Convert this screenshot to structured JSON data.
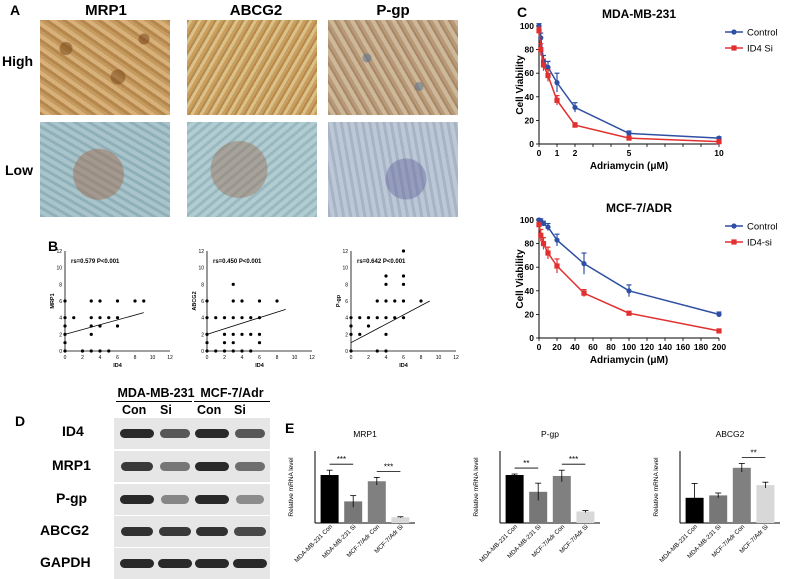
{
  "panels": {
    "A": "A",
    "B": "B",
    "C": "C",
    "D": "D",
    "E": "E"
  },
  "ihc": {
    "columns": [
      "MRP1",
      "ABCG2",
      "P-gp"
    ],
    "rows": [
      "High",
      "Low"
    ]
  },
  "chart_data": [
    {
      "type": "scatter",
      "panel": "B",
      "title": "",
      "xlabel": "ID4",
      "ylabel": "MRP1",
      "annotation": "rs=0.579 P<0.001",
      "xlim": [
        0,
        12
      ],
      "ylim": [
        0,
        12
      ],
      "xticks": [
        "0",
        "2",
        "4",
        "6",
        "8",
        "10",
        "12"
      ],
      "yticks": [
        "0",
        "2",
        "4",
        "6",
        "8",
        "10",
        "12"
      ],
      "points": [
        [
          0,
          0
        ],
        [
          0,
          1
        ],
        [
          0,
          2
        ],
        [
          0,
          3
        ],
        [
          0,
          4
        ],
        [
          0,
          6
        ],
        [
          1,
          4
        ],
        [
          2,
          0
        ],
        [
          3,
          0
        ],
        [
          3,
          2
        ],
        [
          3,
          3
        ],
        [
          3,
          4
        ],
        [
          3,
          6
        ],
        [
          4,
          0
        ],
        [
          4,
          3
        ],
        [
          4,
          4
        ],
        [
          4,
          6
        ],
        [
          5,
          0
        ],
        [
          5,
          4
        ],
        [
          6,
          3
        ],
        [
          6,
          4
        ],
        [
          6,
          6
        ],
        [
          8,
          6
        ],
        [
          9,
          6
        ]
      ],
      "fit": [
        [
          0,
          2
        ],
        [
          9,
          4.6
        ]
      ]
    },
    {
      "type": "scatter",
      "panel": "B",
      "title": "",
      "xlabel": "ID4",
      "ylabel": "ABCG2",
      "annotation": "rs=0.450 P<0.001",
      "xlim": [
        0,
        12
      ],
      "ylim": [
        0,
        12
      ],
      "xticks": [
        "0",
        "2",
        "4",
        "6",
        "8",
        "10",
        "12"
      ],
      "yticks": [
        "0",
        "2",
        "4",
        "6",
        "8",
        "10",
        "12"
      ],
      "points": [
        [
          0,
          0
        ],
        [
          0,
          1
        ],
        [
          0,
          2
        ],
        [
          0,
          4
        ],
        [
          0,
          6
        ],
        [
          1,
          0
        ],
        [
          1,
          4
        ],
        [
          2,
          0
        ],
        [
          2,
          1
        ],
        [
          2,
          2
        ],
        [
          2,
          4
        ],
        [
          3,
          0
        ],
        [
          3,
          1
        ],
        [
          3,
          2
        ],
        [
          3,
          4
        ],
        [
          3,
          6
        ],
        [
          3,
          8
        ],
        [
          4,
          0
        ],
        [
          4,
          2
        ],
        [
          4,
          4
        ],
        [
          4,
          6
        ],
        [
          5,
          0
        ],
        [
          5,
          2
        ],
        [
          5,
          4
        ],
        [
          6,
          1
        ],
        [
          6,
          2
        ],
        [
          6,
          4
        ],
        [
          6,
          6
        ],
        [
          8,
          6
        ]
      ],
      "fit": [
        [
          0,
          2
        ],
        [
          9,
          5
        ]
      ]
    },
    {
      "type": "scatter",
      "panel": "B",
      "title": "",
      "xlabel": "ID4",
      "ylabel": "P-gp",
      "annotation": "rs=0.642 P<0.001",
      "xlim": [
        0,
        12
      ],
      "ylim": [
        0,
        12
      ],
      "xticks": [
        "0",
        "2",
        "4",
        "6",
        "8",
        "10",
        "12"
      ],
      "yticks": [
        "0",
        "2",
        "4",
        "6",
        "8",
        "10",
        "12"
      ],
      "points": [
        [
          0,
          0
        ],
        [
          0,
          2
        ],
        [
          0,
          3
        ],
        [
          0,
          4
        ],
        [
          1,
          2
        ],
        [
          1,
          4
        ],
        [
          2,
          3
        ],
        [
          2,
          4
        ],
        [
          3,
          0
        ],
        [
          3,
          4
        ],
        [
          3,
          6
        ],
        [
          4,
          0
        ],
        [
          4,
          2
        ],
        [
          4,
          4
        ],
        [
          4,
          6
        ],
        [
          4,
          8
        ],
        [
          4,
          9
        ],
        [
          5,
          4
        ],
        [
          5,
          6
        ],
        [
          6,
          4
        ],
        [
          6,
          6
        ],
        [
          6,
          8
        ],
        [
          6,
          9
        ],
        [
          6,
          12
        ],
        [
          8,
          6
        ]
      ],
      "fit": [
        [
          0,
          1
        ],
        [
          9,
          6
        ]
      ]
    },
    {
      "type": "line",
      "panel": "C",
      "title": "MDA-MB-231",
      "xlabel": "Adriamycin (μM)",
      "ylabel": "Cell Viability",
      "xlim": [
        0,
        10
      ],
      "ylim": [
        0,
        100
      ],
      "xticks": [
        "0",
        "1",
        "2",
        "3",
        "4",
        "5",
        "6",
        "7",
        "8",
        "9",
        "10"
      ],
      "yticks": [
        "0",
        "20",
        "40",
        "60",
        "80",
        "100"
      ],
      "legend": "top-right",
      "series": [
        {
          "name": "Control",
          "color": "#2e4fa3",
          "x": [
            0,
            0.1,
            0.25,
            0.5,
            1,
            2,
            5,
            10
          ],
          "y": [
            100,
            90,
            70,
            65,
            52,
            31,
            9,
            5
          ],
          "err": [
            2,
            4,
            5,
            5,
            8,
            4,
            2,
            1
          ]
        },
        {
          "name": "ID4 Si",
          "color": "#e03030",
          "x": [
            0,
            0.1,
            0.25,
            0.5,
            1,
            2,
            5,
            10
          ],
          "y": [
            96,
            80,
            67,
            58,
            37,
            16,
            5,
            2
          ],
          "err": [
            3,
            5,
            5,
            5,
            4,
            2,
            1,
            1
          ]
        }
      ]
    },
    {
      "type": "line",
      "panel": "C",
      "title": "MCF-7/ADR",
      "xlabel": "Adriamycin (μM)",
      "ylabel": "Cell Viability",
      "xlim": [
        0,
        200
      ],
      "ylim": [
        0,
        100
      ],
      "xticks": [
        "0",
        "20",
        "40",
        "60",
        "80",
        "100",
        "120",
        "140",
        "160",
        "180",
        "200"
      ],
      "yticks": [
        "0",
        "20",
        "40",
        "60",
        "80",
        "100"
      ],
      "legend": "top-right",
      "series": [
        {
          "name": "Control",
          "color": "#2e4fa3",
          "x": [
            0,
            2,
            5,
            10,
            20,
            50,
            100,
            200
          ],
          "y": [
            100,
            99,
            97,
            94,
            83,
            63,
            40,
            20
          ],
          "err": [
            1,
            2,
            2,
            3,
            5,
            9,
            5,
            2
          ]
        },
        {
          "name": "ID4-si",
          "color": "#e03030",
          "x": [
            0,
            2,
            5,
            10,
            20,
            50,
            100,
            200
          ],
          "y": [
            96,
            87,
            80,
            72,
            61,
            38,
            21,
            6
          ],
          "err": [
            2,
            5,
            5,
            5,
            6,
            3,
            1,
            1
          ]
        }
      ]
    },
    {
      "type": "bar",
      "panel": "E",
      "title": "MRP1",
      "ylabel": "Relative mRNA level",
      "categories": [
        "MDA-MB-231 Con",
        "MDA-MB-231 Si",
        "MCF-7/Adr Con",
        "MCF-7/Adr Si"
      ],
      "values": [
        1.0,
        0.45,
        0.87,
        0.12
      ],
      "err": [
        0.1,
        0.12,
        0.08,
        0.01
      ],
      "colors": [
        "#000000",
        "#777777",
        "#808080",
        "#d8d8d8"
      ],
      "ylim": [
        0,
        1.5
      ],
      "significance": [
        {
          "from": 0,
          "to": 1,
          "label": "***"
        },
        {
          "from": 2,
          "to": 3,
          "label": "***"
        }
      ]
    },
    {
      "type": "bar",
      "panel": "E",
      "title": "P-gp",
      "ylabel": "Relative mRNA level",
      "categories": [
        "MDA-MB-231 Con",
        "MDA-MB-231 Si",
        "MCF-7/Adr Con",
        "MCF-7/Adr Si"
      ],
      "values": [
        1.0,
        0.65,
        0.98,
        0.24
      ],
      "err": [
        0.02,
        0.18,
        0.12,
        0.02
      ],
      "colors": [
        "#000000",
        "#777777",
        "#808080",
        "#d8d8d8"
      ],
      "ylim": [
        0,
        1.5
      ],
      "significance": [
        {
          "from": 0,
          "to": 1,
          "label": "**"
        },
        {
          "from": 2,
          "to": 3,
          "label": "***"
        }
      ]
    },
    {
      "type": "bar",
      "panel": "E",
      "title": "ABCG2",
      "ylabel": "Relative mRNA level",
      "categories": [
        "MDA-MB-231 Con",
        "MDA-MB-231 Si",
        "MCF-7/Adr Con",
        "MCF-7/Adr Si"
      ],
      "values": [
        1.05,
        1.15,
        2.3,
        1.58
      ],
      "err": [
        0.6,
        0.1,
        0.18,
        0.12
      ],
      "colors": [
        "#000000",
        "#777777",
        "#808080",
        "#d8d8d8"
      ],
      "ylim": [
        0,
        3
      ],
      "significance": [
        {
          "from": 2,
          "to": 3,
          "label": "**"
        }
      ]
    }
  ],
  "blot": {
    "cell_lines": [
      "MDA-MB-231",
      "MCF-7/Adr"
    ],
    "conditions": [
      "Con",
      "Si",
      "Con",
      "Si"
    ],
    "proteins": [
      "ID4",
      "MRP1",
      "P-gp",
      "ABCG2",
      "GAPDH"
    ],
    "intensity": [
      [
        0.9,
        0.6,
        0.9,
        0.6
      ],
      [
        0.8,
        0.4,
        0.9,
        0.45
      ],
      [
        0.9,
        0.3,
        0.9,
        0.25
      ],
      [
        0.85,
        0.8,
        0.85,
        0.7
      ],
      [
        0.9,
        0.9,
        0.9,
        0.9
      ]
    ]
  }
}
